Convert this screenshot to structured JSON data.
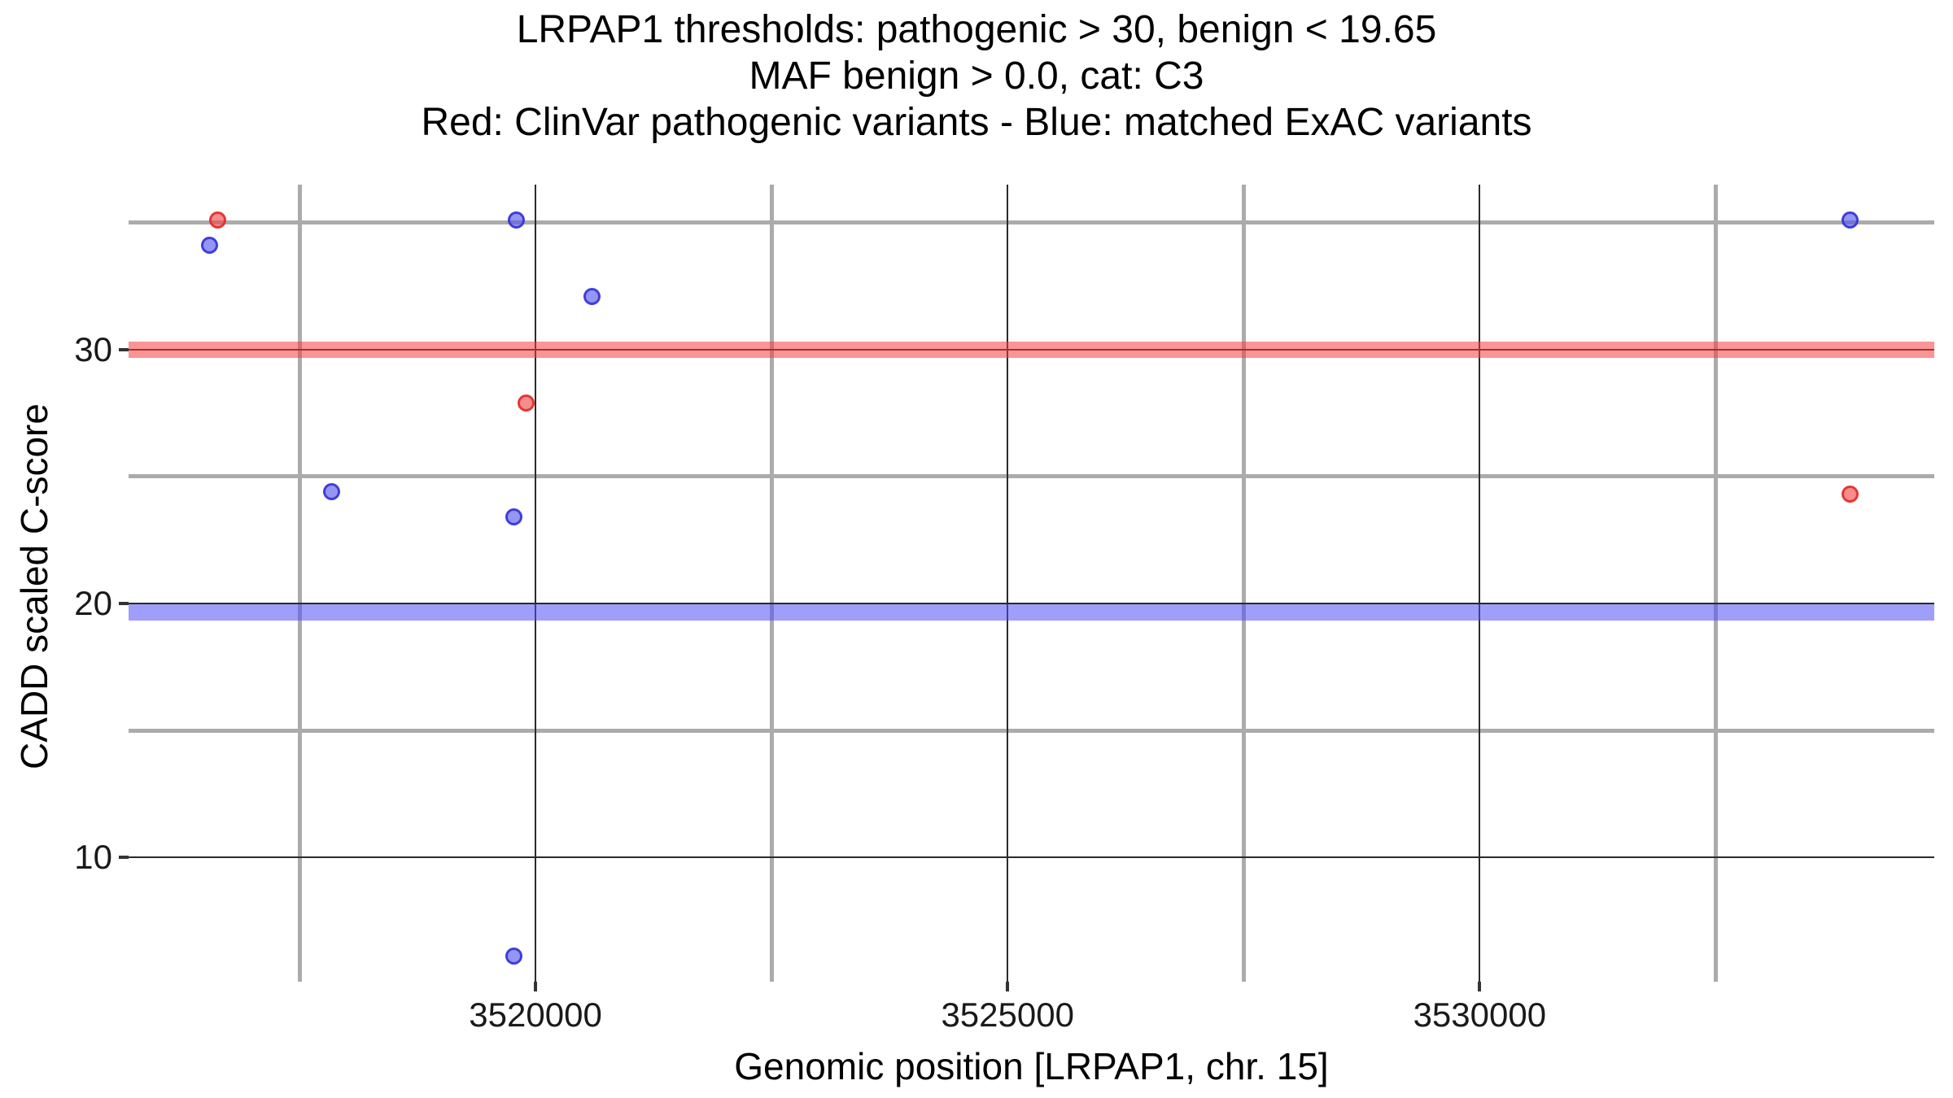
{
  "figure": {
    "title_lines": [
      "LRPAP1 thresholds: pathogenic > 30, benign < 19.65",
      "MAF benign > 0.0, cat: C3",
      "Red: ClinVar pathogenic variants - Blue: matched ExAC variants"
    ],
    "x_axis": {
      "label": "Genomic position [LRPAP1, chr. 15]",
      "tick_labels": [
        "3520000",
        "3525000",
        "3530000"
      ]
    },
    "y_axis": {
      "label": "CADD scaled C-score",
      "tick_labels": [
        "30",
        "20",
        "10"
      ]
    }
  },
  "chart_data": {
    "type": "scatter",
    "title": "LRPAP1 thresholds: pathogenic > 30, benign < 19.65 | MAF benign > 0.0, cat: C3 | Red: ClinVar pathogenic variants - Blue: matched ExAC variants",
    "xlabel": "Genomic position [LRPAP1, chr. 15]",
    "ylabel": "CADD scaled C-score",
    "xlim": [
      3515690,
      3534815
    ],
    "ylim": [
      5.1,
      36.5
    ],
    "grid": true,
    "legend_position": "none",
    "x_major_ticks": [
      3520000,
      3525000,
      3530000
    ],
    "x_minor_gridlines": [
      3517500,
      3522500,
      3527500,
      3532500
    ],
    "y_major_ticks": [
      30,
      20,
      10
    ],
    "y_minor_gridlines": [
      35,
      25,
      15
    ],
    "thresholds": [
      {
        "name": "pathogenic-threshold",
        "value": 30.0,
        "color": "rgba(248,60,60,0.55)",
        "half_width_units": 0.33
      },
      {
        "name": "benign-threshold",
        "value": 19.65,
        "color": "rgba(80,80,248,0.55)",
        "half_width_units": 0.33
      }
    ],
    "series": [
      {
        "name": "ClinVar pathogenic variants",
        "color": "red",
        "points": [
          [
            3516630,
            35.1
          ],
          [
            3519900,
            27.9
          ],
          [
            3533920,
            24.3
          ]
        ]
      },
      {
        "name": "matched ExAC variants",
        "color": "blue",
        "points": [
          [
            3516550,
            34.1
          ],
          [
            3519800,
            35.1
          ],
          [
            3520600,
            32.1
          ],
          [
            3517840,
            24.4
          ],
          [
            3519770,
            23.4
          ],
          [
            3519770,
            6.1
          ],
          [
            3533920,
            35.1
          ]
        ]
      }
    ]
  },
  "colors": {
    "minor_grid": "#ababab",
    "major_grid": "#2b2b2b",
    "red_band": "rgba(248,60,60,0.55)",
    "blue_band": "rgba(80,80,248,0.55)",
    "red_point": "#f44343",
    "blue_point": "#5454ee",
    "background": "#ffffff"
  }
}
